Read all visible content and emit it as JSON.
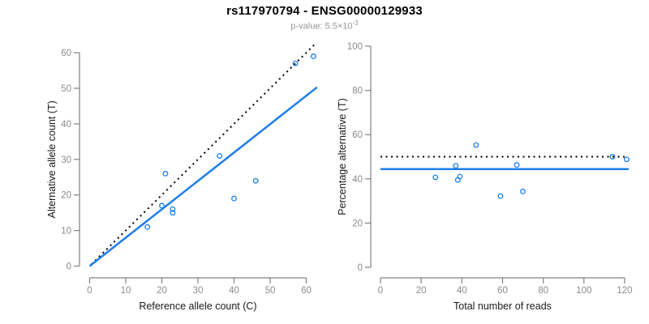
{
  "header": {
    "title": "rs117970794 - ENSG00000129933",
    "subtitle": {
      "base": "p-value: 5.5×10",
      "exponent": "-3"
    }
  },
  "colors": {
    "point_blue": "#1E7FE8",
    "fit_line_blue": "#1E7FE8",
    "expected_line_black": "#000000",
    "axis_gray": "#808080",
    "tick_label_gray": "#8C8C8C",
    "axis_title_dark": "#1A1A1A",
    "subtitle_gray": "#969696",
    "background": "#FFFFFF"
  },
  "chart_data": [
    {
      "type": "scatter",
      "name": "allele-counts",
      "title": "",
      "xlabel": "Reference allele count (C)",
      "ylabel": "Alternative allele count (T)",
      "xlim": [
        0,
        62
      ],
      "ylim": [
        0,
        60
      ],
      "xticks": [
        0,
        10,
        20,
        30,
        40,
        50,
        60
      ],
      "yticks": [
        0,
        10,
        20,
        30,
        40,
        50,
        60
      ],
      "grid": false,
      "legend": false,
      "marker": "open-circle",
      "points": [
        [
          16,
          11
        ],
        [
          20,
          17
        ],
        [
          21,
          26
        ],
        [
          23,
          15
        ],
        [
          23,
          16
        ],
        [
          36,
          31
        ],
        [
          40,
          19
        ],
        [
          46,
          24
        ],
        [
          57,
          57
        ],
        [
          62,
          59
        ]
      ],
      "lines": [
        {
          "name": "expected-50pct-identity",
          "style": "dotted",
          "color": "#000000",
          "width": 2,
          "from": [
            0.5,
            0.5
          ],
          "to": [
            62.5,
            62.5
          ]
        },
        {
          "name": "fitted-allelic-ratio",
          "style": "solid",
          "color": "#1E7FE8",
          "width": 2.5,
          "from": [
            0,
            0
          ],
          "to": [
            63,
            50.3
          ]
        }
      ]
    },
    {
      "type": "scatter",
      "name": "percentage-vs-coverage",
      "title": "",
      "xlabel": "Total number of reads",
      "ylabel": "Percentage alternative (T)",
      "xlim": [
        0,
        122
      ],
      "ylim": [
        0,
        100
      ],
      "xticks": [
        0,
        20,
        40,
        60,
        80,
        100,
        120
      ],
      "yticks": [
        0,
        20,
        40,
        60,
        80,
        100
      ],
      "grid": false,
      "legend": false,
      "marker": "open-circle",
      "points": [
        [
          27,
          40.7
        ],
        [
          37,
          45.9
        ],
        [
          38,
          39.5
        ],
        [
          39,
          41.0
        ],
        [
          47,
          55.3
        ],
        [
          59,
          32.2
        ],
        [
          67,
          46.3
        ],
        [
          70,
          34.3
        ],
        [
          114,
          50.0
        ],
        [
          121,
          48.8
        ]
      ],
      "lines": [
        {
          "name": "expected-50pct",
          "style": "dotted",
          "color": "#000000",
          "width": 2,
          "from": [
            0,
            50
          ],
          "to": [
            120,
            50
          ]
        },
        {
          "name": "mean-percentage",
          "style": "solid",
          "color": "#1E7FE8",
          "width": 2.5,
          "from": [
            0,
            44.4
          ],
          "to": [
            122,
            44.4
          ]
        }
      ]
    }
  ]
}
